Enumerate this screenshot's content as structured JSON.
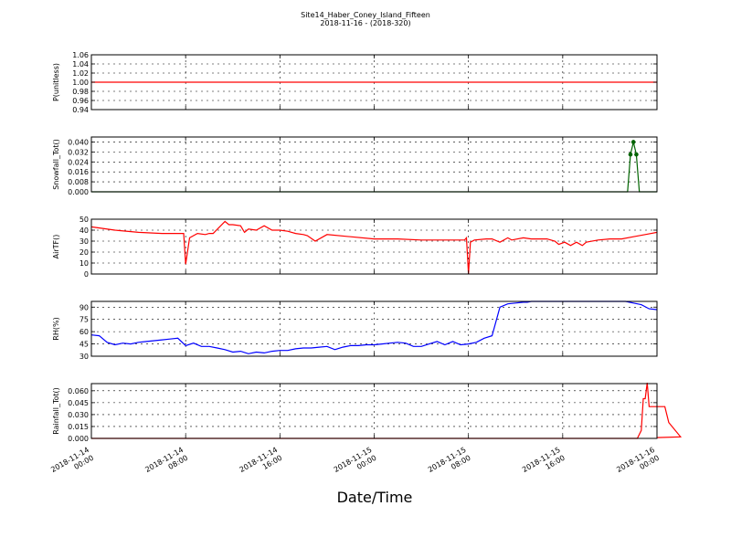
{
  "title": "Site14_Haber_Coney_Island_Fifteen",
  "subtitle": "2018-11-16 - (2018-320)",
  "xlabel": "Date/Time",
  "x_ticks": [
    {
      "l1": "2018-11-14",
      "l2": "00:00",
      "h": 0
    },
    {
      "l1": "2018-11-14",
      "l2": "08:00",
      "h": 8
    },
    {
      "l1": "2018-11-14",
      "l2": "16:00",
      "h": 16
    },
    {
      "l1": "2018-11-15",
      "l2": "00:00",
      "h": 24
    },
    {
      "l1": "2018-11-15",
      "l2": "08:00",
      "h": 32
    },
    {
      "l1": "2018-11-15",
      "l2": "16:00",
      "h": 40
    },
    {
      "l1": "2018-11-16",
      "l2": "00:00",
      "h": 48
    }
  ],
  "chart_data": [
    {
      "type": "line",
      "ylabel": "P(unitless)",
      "ylim": [
        0.94,
        1.06
      ],
      "yticks": [
        0.94,
        0.96,
        0.98,
        1.0,
        1.02,
        1.04,
        1.06
      ],
      "decimals": 2,
      "color": "#ff0000",
      "markers": false,
      "grid": true,
      "series": [
        {
          "x": [
            "2018-11-14 00:00",
            "2018-11-16 00:00"
          ],
          "values": [
            1.0,
            1.0
          ]
        }
      ]
    },
    {
      "type": "line",
      "ylabel": "Snowfall_Tot()",
      "ylim": [
        0,
        0.044
      ],
      "yticks": [
        0.0,
        0.008,
        0.016,
        0.024,
        0.032,
        0.04
      ],
      "decimals": 3,
      "color": "#006400",
      "markers": true,
      "grid": true,
      "series": [
        {
          "x": [
            "2018-11-14 00:00",
            "2018-11-15 21:30",
            "2018-11-15 21:45",
            "2018-11-15 22:00",
            "2018-11-15 22:15",
            "2018-11-15 22:30",
            "2018-11-16 00:00"
          ],
          "values": [
            0,
            0,
            0.03,
            0.04,
            0.03,
            0,
            0
          ]
        }
      ]
    },
    {
      "type": "line",
      "ylabel": "AirTF()",
      "ylim": [
        0,
        50
      ],
      "yticks": [
        0,
        10,
        20,
        30,
        40,
        50
      ],
      "decimals": 0,
      "color": "#ff0000",
      "markers": false,
      "grid": true,
      "series": [
        {
          "x": [
            "2018-11-14 00:00",
            "2018-11-14 02:00",
            "2018-11-14 04:00",
            "2018-11-14 06:00",
            "2018-11-14 07:30",
            "2018-11-14 07:50",
            "2018-11-14 08:00",
            "2018-11-14 08:20",
            "2018-11-14 09:00",
            "2018-11-14 09:40",
            "2018-11-14 10:00",
            "2018-11-14 10:20",
            "2018-11-14 11:20",
            "2018-11-14 11:40",
            "2018-11-14 12:00",
            "2018-11-14 12:40",
            "2018-11-14 13:00",
            "2018-11-14 13:20",
            "2018-11-14 14:00",
            "2018-11-14 14:40",
            "2018-11-14 15:20",
            "2018-11-14 16:00",
            "2018-11-14 16:40",
            "2018-11-14 17:20",
            "2018-11-14 18:00",
            "2018-11-14 18:20",
            "2018-11-14 19:00",
            "2018-11-14 20:00",
            "2018-11-14 22:00",
            "2018-11-15 00:00",
            "2018-11-15 02:00",
            "2018-11-15 04:00",
            "2018-11-15 06:00",
            "2018-11-15 07:40",
            "2018-11-15 07:50",
            "2018-11-15 08:00",
            "2018-11-15 08:10",
            "2018-11-15 08:30",
            "2018-11-15 09:30",
            "2018-11-15 10:00",
            "2018-11-15 10:40",
            "2018-11-15 11:20",
            "2018-11-15 11:40",
            "2018-11-15 12:40",
            "2018-11-15 13:20",
            "2018-11-15 14:00",
            "2018-11-15 14:40",
            "2018-11-15 15:20",
            "2018-11-15 15:40",
            "2018-11-15 16:10",
            "2018-11-15 16:40",
            "2018-11-15 17:10",
            "2018-11-15 17:40",
            "2018-11-15 18:00",
            "2018-11-15 19:00",
            "2018-11-15 20:00",
            "2018-11-15 21:00",
            "2018-11-15 22:00",
            "2018-11-15 23:00",
            "2018-11-16 00:00"
          ],
          "values": [
            43,
            40,
            38,
            37,
            37,
            37,
            9,
            33,
            37,
            36,
            37,
            37,
            48,
            45,
            45,
            44,
            38,
            41,
            40,
            44,
            40,
            40,
            39,
            37,
            36,
            35,
            30,
            36,
            34,
            32,
            32,
            31,
            31,
            31,
            33,
            0,
            29,
            31,
            32,
            32,
            29,
            33,
            31,
            33,
            32,
            32,
            32,
            30,
            27,
            29,
            26,
            29,
            26,
            29,
            31,
            32,
            32,
            34,
            36,
            38
          ]
        }
      ]
    },
    {
      "type": "line",
      "ylabel": "RH(%)",
      "ylim": [
        30,
        97
      ],
      "yticks": [
        30,
        45,
        60,
        75,
        90
      ],
      "decimals": 0,
      "color": "#0000ff",
      "markers": false,
      "grid": true,
      "series": [
        {
          "x": [
            "2018-11-14 00:00",
            "2018-11-14 00:40",
            "2018-11-14 01:20",
            "2018-11-14 02:00",
            "2018-11-14 02:40",
            "2018-11-14 03:20",
            "2018-11-14 04:00",
            "2018-11-14 04:40",
            "2018-11-14 05:20",
            "2018-11-14 06:00",
            "2018-11-14 06:40",
            "2018-11-14 07:20",
            "2018-11-14 08:00",
            "2018-11-14 08:40",
            "2018-11-14 09:20",
            "2018-11-14 10:00",
            "2018-11-14 10:40",
            "2018-11-14 11:20",
            "2018-11-14 12:00",
            "2018-11-14 12:40",
            "2018-11-14 13:20",
            "2018-11-14 14:00",
            "2018-11-14 14:40",
            "2018-11-14 15:20",
            "2018-11-14 16:00",
            "2018-11-14 16:40",
            "2018-11-14 17:20",
            "2018-11-14 18:00",
            "2018-11-14 18:40",
            "2018-11-14 19:20",
            "2018-11-14 20:00",
            "2018-11-14 20:40",
            "2018-11-14 21:20",
            "2018-11-14 22:00",
            "2018-11-14 22:40",
            "2018-11-14 23:20",
            "2018-11-15 00:00",
            "2018-11-15 00:40",
            "2018-11-15 01:20",
            "2018-11-15 02:00",
            "2018-11-15 02:40",
            "2018-11-15 03:20",
            "2018-11-15 04:00",
            "2018-11-15 04:40",
            "2018-11-15 05:20",
            "2018-11-15 06:00",
            "2018-11-15 06:40",
            "2018-11-15 07:20",
            "2018-11-15 08:00",
            "2018-11-15 08:40",
            "2018-11-15 09:20",
            "2018-11-15 10:00",
            "2018-11-15 10:40",
            "2018-11-15 11:20",
            "2018-11-15 12:00",
            "2018-11-15 12:40",
            "2018-11-15 13:00",
            "2018-11-15 13:20",
            "2018-11-15 14:00",
            "2018-11-15 14:40",
            "2018-11-15 15:20",
            "2018-11-15 16:00",
            "2018-11-15 16:40",
            "2018-11-15 17:20",
            "2018-11-15 18:00",
            "2018-11-15 18:40",
            "2018-11-15 19:20",
            "2018-11-15 20:00",
            "2018-11-15 20:40",
            "2018-11-15 21:20",
            "2018-11-15 22:00",
            "2018-11-15 22:40",
            "2018-11-15 23:20",
            "2018-11-16 00:00"
          ],
          "values": [
            56,
            55,
            47,
            44,
            46,
            45,
            47,
            48,
            49,
            50,
            51,
            52,
            43,
            46,
            42,
            42,
            40,
            38,
            35,
            36,
            33,
            35,
            34,
            36,
            37,
            37,
            39,
            40,
            40,
            41,
            42,
            38,
            41,
            43,
            43,
            44,
            44,
            45,
            46,
            47,
            46,
            42,
            42,
            45,
            48,
            44,
            48,
            44,
            45,
            47,
            52,
            55,
            90,
            94,
            95,
            96,
            96,
            97,
            97,
            97,
            97,
            97,
            97,
            97,
            97,
            97,
            97,
            97,
            97,
            97,
            95,
            93,
            88,
            87
          ]
        }
      ]
    },
    {
      "type": "line",
      "ylabel": "Rainfall_Tot()",
      "ylim": [
        0,
        0.069
      ],
      "yticks": [
        0.0,
        0.015,
        0.03,
        0.045,
        0.06
      ],
      "decimals": 3,
      "color": "#ff0000",
      "markers": false,
      "grid": true,
      "series": [
        {
          "x": [
            "2018-11-14 00:00",
            "2018-11-15 22:20",
            "2018-11-15 22:40",
            "2018-11-15 22:50",
            "2018-11-15 23:00",
            "2018-11-15 23:10",
            "2018-11-15 23:20",
            "2018-11-15 23:30",
            "2018-11-15 24:20",
            "2018-11-15 24:40",
            "2018-11-15 25:00",
            "2018-11-15 26:00",
            "2018-11-16 00:00"
          ],
          "values": [
            0,
            0,
            0.01,
            0.05,
            0.05,
            0.07,
            0.04,
            0.04,
            0.04,
            0.04,
            0.02,
            0.002,
            0.001
          ]
        }
      ]
    }
  ]
}
